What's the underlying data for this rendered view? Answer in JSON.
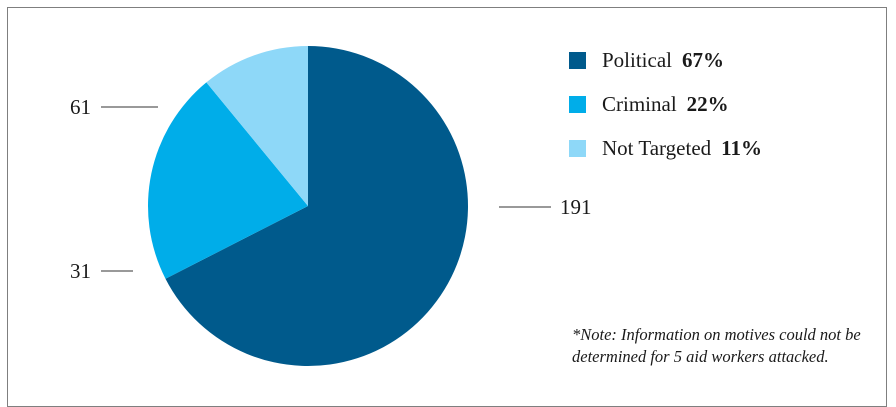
{
  "chart_data": {
    "type": "pie",
    "slices": [
      {
        "name": "Political",
        "percent_label": "67%",
        "value": 191,
        "value_label": "191",
        "color": "#005a8c"
      },
      {
        "name": "Criminal",
        "percent_label": "22%",
        "value": 61,
        "value_label": "61",
        "color": "#00ade9"
      },
      {
        "name": "Not Targeted",
        "percent_label": "11%",
        "value": 31,
        "value_label": "31",
        "color": "#8ed8f8"
      }
    ],
    "legend_position": "right",
    "note": "*Note: Information on motives could not be determined for 5 aid workers attacked."
  }
}
